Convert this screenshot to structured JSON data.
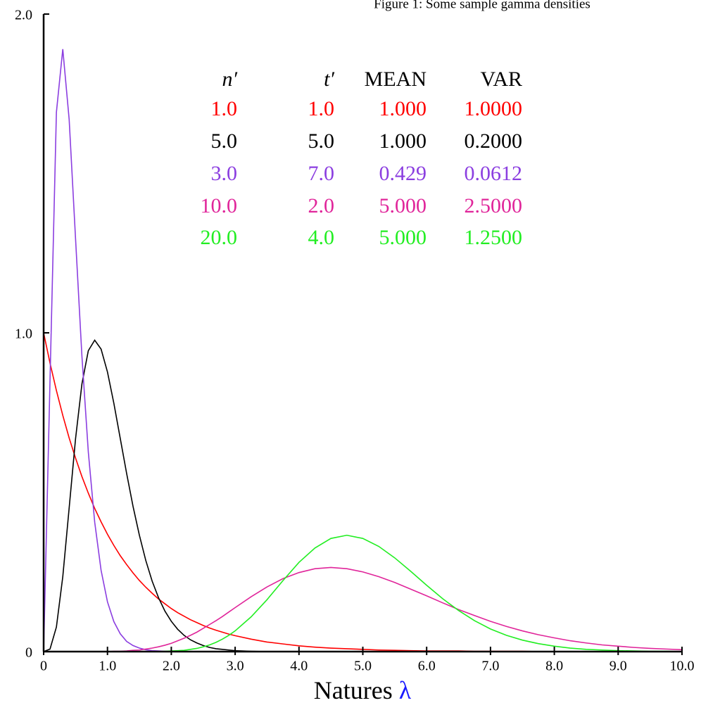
{
  "chart_data": {
    "type": "line",
    "title": "Figure 1: Some sample gamma densities",
    "x_label": "Natures",
    "x_label_symbol": "λ",
    "xlim": [
      0,
      10
    ],
    "ylim": [
      0,
      2
    ],
    "xticks": [
      0,
      {
        "value": 1,
        "label": "1.0"
      },
      {
        "value": 2,
        "label": "2.0"
      },
      {
        "value": 3,
        "label": "3.0"
      },
      {
        "value": 4,
        "label": "4.0"
      },
      {
        "value": 5,
        "label": "5.0"
      },
      {
        "value": 6,
        "label": "6.0"
      },
      {
        "value": 7,
        "label": "7.0"
      },
      {
        "value": 8,
        "label": "8.0"
      },
      {
        "value": 9,
        "label": "9.0"
      },
      {
        "value": 10,
        "label": "10.0"
      }
    ],
    "yticks": [
      0,
      {
        "value": 1,
        "label": "1.0"
      },
      {
        "value": 2,
        "label": "2.0"
      }
    ],
    "x": [
      0,
      0.1,
      0.2,
      0.3,
      0.4,
      0.5,
      0.6,
      0.7,
      0.8,
      0.9,
      1.0,
      1.1,
      1.2,
      1.3,
      1.4,
      1.5,
      1.6,
      1.7,
      1.8,
      1.9,
      2.0,
      2.1,
      2.2,
      2.3,
      2.4,
      2.5,
      2.6,
      2.7,
      2.8,
      2.9,
      3.0,
      3.25,
      3.5,
      3.75,
      4.0,
      4.25,
      4.5,
      4.75,
      5.0,
      5.25,
      5.5,
      5.75,
      6.0,
      6.25,
      6.5,
      6.75,
      7.0,
      7.25,
      7.5,
      7.75,
      8.0,
      8.25,
      8.5,
      8.75,
      9.0,
      9.25,
      9.5,
      9.75,
      10.0
    ],
    "series": [
      {
        "color": "#ff0000",
        "values": [
          1,
          0.905,
          0.819,
          0.741,
          0.67,
          0.607,
          0.549,
          0.497,
          0.449,
          0.407,
          0.368,
          0.333,
          0.301,
          0.273,
          0.247,
          0.223,
          0.202,
          0.183,
          0.165,
          0.15,
          0.135,
          0.122,
          0.111,
          0.1,
          0.091,
          0.082,
          0.074,
          0.067,
          0.061,
          0.055,
          0.05,
          0.039,
          0.03,
          0.024,
          0.018,
          0.014,
          0.011,
          0.009,
          0.007,
          0.005,
          0.004,
          0.003,
          0.002,
          0.002,
          0.002,
          0.001,
          0.001,
          0.001,
          0.001,
          0,
          0,
          0,
          0,
          0,
          0,
          0,
          0,
          0,
          0
        ]
      },
      {
        "color": "#000000",
        "values": [
          0,
          0.008,
          0.077,
          0.235,
          0.451,
          0.668,
          0.84,
          0.944,
          0.977,
          0.949,
          0.877,
          0.779,
          0.669,
          0.559,
          0.456,
          0.365,
          0.286,
          0.221,
          0.169,
          0.127,
          0.095,
          0.07,
          0.051,
          0.037,
          0.027,
          0.019,
          0.013,
          0.009,
          0.007,
          0.005,
          0.003,
          0.001,
          0,
          0,
          0,
          0,
          0,
          0,
          0,
          0,
          0,
          0,
          0,
          0,
          0,
          0,
          0,
          0,
          0,
          0,
          0,
          0,
          0,
          0,
          0,
          0,
          0,
          0,
          0
        ]
      },
      {
        "color": "#8b3ee0",
        "values": [
          0,
          0.852,
          1.692,
          1.89,
          1.669,
          1.295,
          0.926,
          0.626,
          0.406,
          0.255,
          0.156,
          0.094,
          0.056,
          0.032,
          0.019,
          0.011,
          0.006,
          0.003,
          0.002,
          0.001,
          0.001,
          0,
          0,
          0,
          0,
          0,
          0,
          0,
          0,
          0,
          0,
          0,
          0,
          0,
          0,
          0,
          0,
          0,
          0,
          0,
          0,
          0,
          0,
          0,
          0,
          0,
          0,
          0,
          0,
          0,
          0,
          0,
          0,
          0,
          0,
          0,
          0,
          0,
          0
        ]
      },
      {
        "color": "#e0259a",
        "values": [
          0,
          0,
          0,
          0,
          0,
          0,
          0,
          0,
          0,
          0,
          0,
          0.001,
          0.001,
          0.002,
          0.004,
          0.005,
          0.008,
          0.011,
          0.015,
          0.02,
          0.026,
          0.034,
          0.042,
          0.051,
          0.061,
          0.073,
          0.085,
          0.097,
          0.11,
          0.124,
          0.138,
          0.172,
          0.203,
          0.229,
          0.248,
          0.26,
          0.264,
          0.26,
          0.25,
          0.235,
          0.217,
          0.196,
          0.175,
          0.153,
          0.132,
          0.113,
          0.095,
          0.079,
          0.065,
          0.053,
          0.043,
          0.034,
          0.027,
          0.021,
          0.017,
          0.013,
          0.01,
          0.008,
          0.006
        ]
      },
      {
        "color": "#22ee22",
        "values": [
          0,
          0,
          0,
          0,
          0,
          0,
          0,
          0,
          0,
          0,
          0,
          0,
          0,
          0,
          0,
          0,
          0,
          0,
          0,
          0.001,
          0.002,
          0.003,
          0.004,
          0.007,
          0.01,
          0.015,
          0.021,
          0.029,
          0.039,
          0.051,
          0.065,
          0.109,
          0.163,
          0.223,
          0.28,
          0.325,
          0.355,
          0.365,
          0.355,
          0.33,
          0.294,
          0.252,
          0.208,
          0.166,
          0.129,
          0.097,
          0.071,
          0.051,
          0.036,
          0.025,
          0.017,
          0.011,
          0.007,
          0.005,
          0.003,
          0.002,
          0.001,
          0.001,
          0
        ]
      }
    ],
    "param_table": {
      "headers": [
        "n′",
        "t′",
        "MEAN",
        "VAR"
      ],
      "rows": [
        [
          "1.0",
          "1.0",
          "1.000",
          "1.0000"
        ],
        [
          "5.0",
          "5.0",
          "1.000",
          "0.2000"
        ],
        [
          "3.0",
          "7.0",
          "0.429",
          "0.0612"
        ],
        [
          "10.0",
          "2.0",
          "5.000",
          "2.5000"
        ],
        [
          "20.0",
          "4.0",
          "5.000",
          "1.2500"
        ]
      ]
    }
  }
}
